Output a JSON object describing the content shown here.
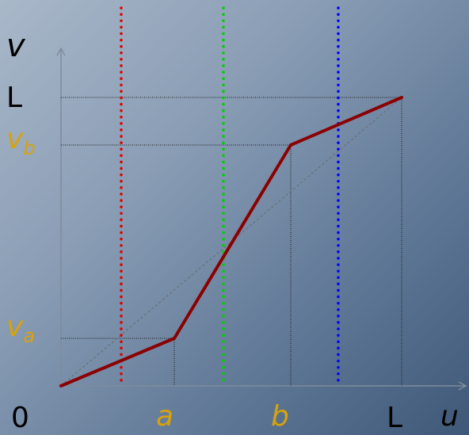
{
  "labels": {
    "v_axis": "v",
    "u_axis": "u",
    "origin": "0",
    "L_y": "L",
    "L_x": "L",
    "vb_main": "v",
    "vb_sub": "b",
    "va_main": "v",
    "va_sub": "a",
    "a": "a",
    "b": "b"
  },
  "colors": {
    "curve": "#8b0000",
    "red_line": "#e00000",
    "green_line": "#00d000",
    "blue_line": "#0000ff",
    "gold_label": "#d9a20b",
    "axis": "#7f8c9c"
  }
}
